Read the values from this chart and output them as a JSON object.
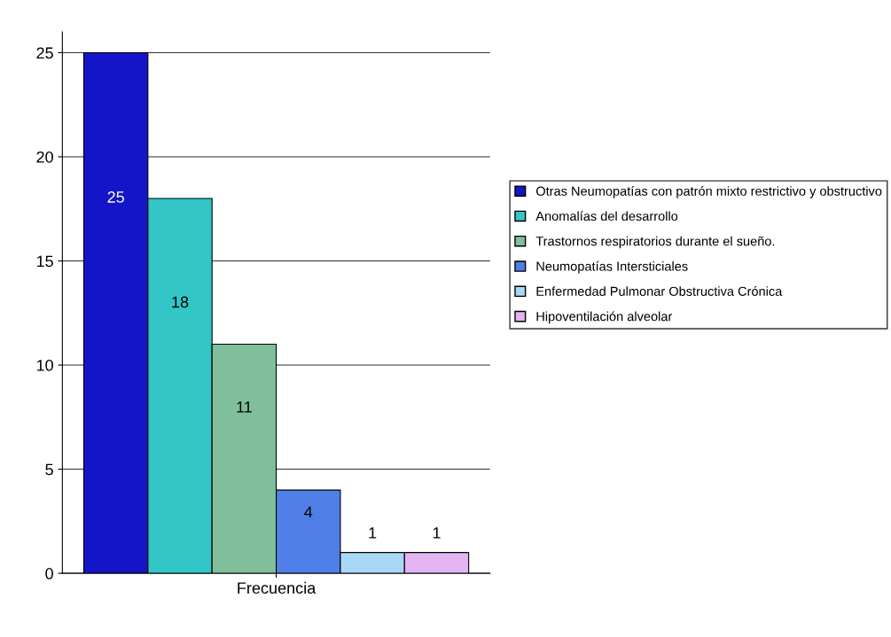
{
  "chart_data": {
    "type": "bar",
    "categories": [
      "Frecuencia"
    ],
    "series": [
      {
        "name": "Otras Neumopatías con patrón mixto restrictivo y obstructivo",
        "color": "#1414c8",
        "values": [
          25
        ]
      },
      {
        "name": "Anomalías del desarrollo",
        "color": "#33c6c6",
        "values": [
          18
        ]
      },
      {
        "name": "Trastornos respiratorios durante el sueño.",
        "color": "#7fbf9c",
        "values": [
          11
        ]
      },
      {
        "name": "Neumopatías Intersticiales",
        "color": "#4f7ee6",
        "values": [
          4
        ]
      },
      {
        "name": "Enfermedad Pulmonar Obstructiva Crónica",
        "color": "#a9d8f6",
        "values": [
          1
        ]
      },
      {
        "name": "Hipoventilación alveolar",
        "color": "#e3b3f2",
        "values": [
          1
        ]
      }
    ],
    "ylim": [
      0,
      26
    ],
    "yticks": [
      0,
      5,
      10,
      15,
      20,
      25
    ],
    "grid": "y",
    "legend": "right",
    "data_labels": true
  }
}
